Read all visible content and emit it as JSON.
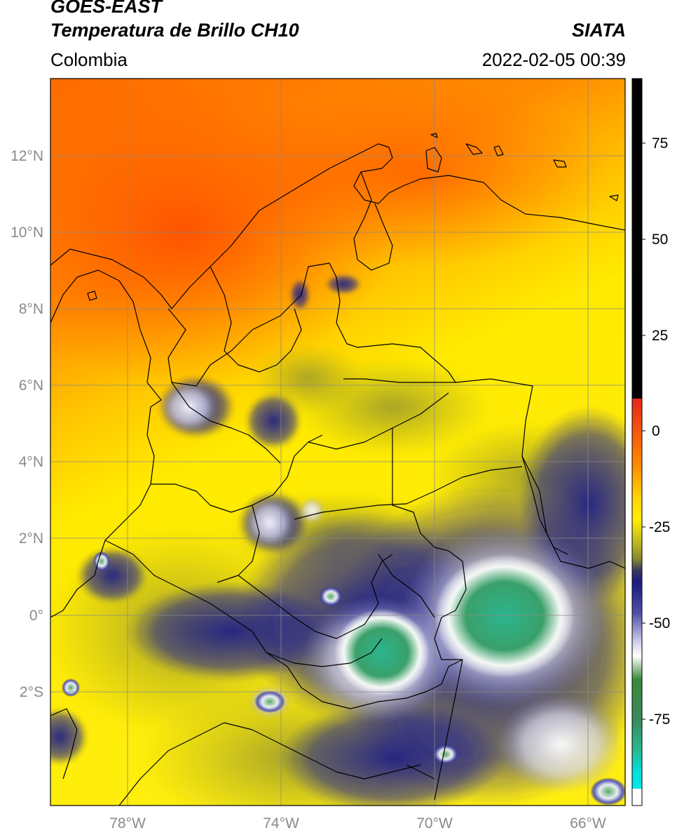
{
  "header": {
    "satellite": "GOES-EAST",
    "product": "Temperatura de Brillo CH10",
    "agency": "SIATA",
    "region": "Colombia",
    "datetime": "2022-02-05 00:39"
  },
  "map": {
    "lat_labels": [
      "12°N",
      "10°N",
      "8°N",
      "6°N",
      "4°N",
      "2°N",
      "0°",
      "2°S"
    ],
    "lon_labels": [
      "78°W",
      "74°W",
      "70°W",
      "66°W"
    ]
  },
  "colorbar": {
    "tick_labels": [
      "75",
      "50",
      "25",
      "0",
      "-25",
      "-50",
      "-75"
    ],
    "range": [
      -95,
      90
    ],
    "colors": {
      "warm": "#000000",
      "red": "#e8261a",
      "orange": "#ff8a00",
      "yellow": "#ffee00",
      "olive": "#9a9a30",
      "navy": "#1a1a80",
      "white": "#ffffff",
      "green": "#3a8a3a",
      "teal": "#2ab890",
      "cyan": "#00e0e0"
    }
  }
}
